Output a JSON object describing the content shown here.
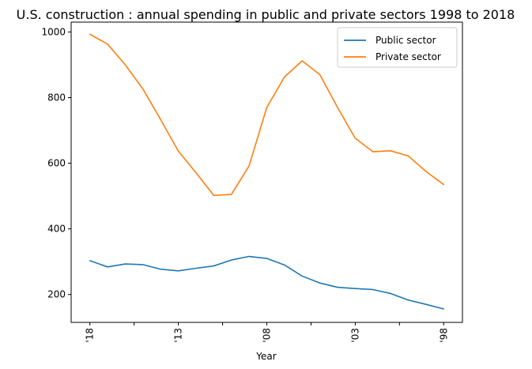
{
  "chart_data": {
    "type": "line",
    "title": "U.S. construction : annual spending in public and private sectors 1998 to 2018",
    "xlabel": "Year",
    "ylabel": "",
    "x": [
      "2018",
      "2017",
      "2016",
      "2015",
      "2014",
      "2013",
      "2012",
      "2011",
      "2010",
      "2009",
      "2008",
      "2007",
      "2006",
      "2005",
      "2004",
      "2003",
      "2002",
      "2001",
      "2000",
      "1999",
      "1998"
    ],
    "x_tick_labels": [
      "'18",
      "",
      "'13",
      "",
      "'08",
      "",
      "'03",
      "",
      "'98"
    ],
    "x_reversed": true,
    "x_tick_label_rotation": "vertical",
    "ylim": [
      115,
      1030
    ],
    "y_ticks": [
      200,
      400,
      600,
      800,
      1000
    ],
    "y_tick_labels": [
      "200",
      "400",
      "600",
      "800",
      "1000"
    ],
    "grid": false,
    "legend": {
      "position": "top-right"
    },
    "series": [
      {
        "name": "Public sector",
        "color": "#1f77b4",
        "values": [
          303,
          284,
          293,
          291,
          277,
          272,
          280,
          287,
          305,
          316,
          310,
          290,
          256,
          235,
          222,
          218,
          215,
          203,
          183,
          170,
          156
        ]
      },
      {
        "name": "Private sector",
        "color": "#ff7f0e",
        "values": [
          993,
          963,
          900,
          826,
          733,
          637,
          571,
          502,
          505,
          592,
          770,
          863,
          912,
          870,
          770,
          676,
          635,
          638,
          622,
          575,
          535
        ]
      }
    ]
  }
}
